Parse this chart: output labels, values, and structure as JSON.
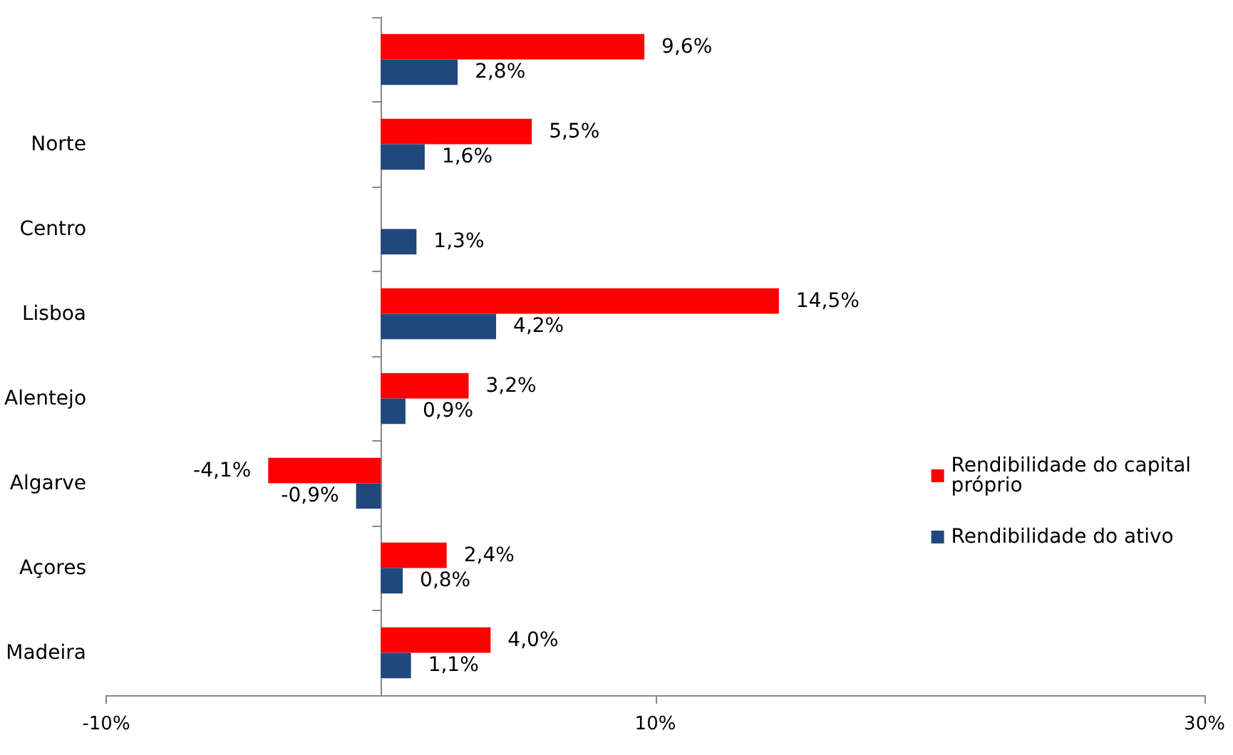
{
  "chart_data": {
    "type": "bar",
    "orientation": "horizontal",
    "categories": [
      null,
      "Norte",
      "Centro",
      "Lisboa",
      "Alentejo",
      "Algarve",
      "Açores",
      "Madeira"
    ],
    "series": [
      {
        "name": "Rendibilidade do capital próprio",
        "color": "#ff0000",
        "values": [
          9.6,
          5.5,
          null,
          14.5,
          3.2,
          -4.1,
          2.4,
          4.0
        ],
        "value_labels": [
          "9,6%",
          "5,5%",
          null,
          "14,5%",
          "3,2%",
          "-4,1%",
          "2,4%",
          "4,0%"
        ]
      },
      {
        "name": "Rendibilidade do ativo",
        "color": "#1f497d",
        "values": [
          2.8,
          1.6,
          1.3,
          4.2,
          0.9,
          -0.9,
          0.8,
          1.1
        ],
        "value_labels": [
          "2,8%",
          "1,6%",
          "1,3%",
          "4,2%",
          "0,9%",
          "-0,9%",
          "0,8%",
          "1,1%"
        ]
      }
    ],
    "xlim": [
      -10,
      30
    ],
    "xticks": [
      {
        "value": -10,
        "label": "-10%"
      },
      {
        "value": 10,
        "label": "10%"
      },
      {
        "value": 30,
        "label": "30%"
      }
    ],
    "grid": false,
    "legend": "right"
  }
}
